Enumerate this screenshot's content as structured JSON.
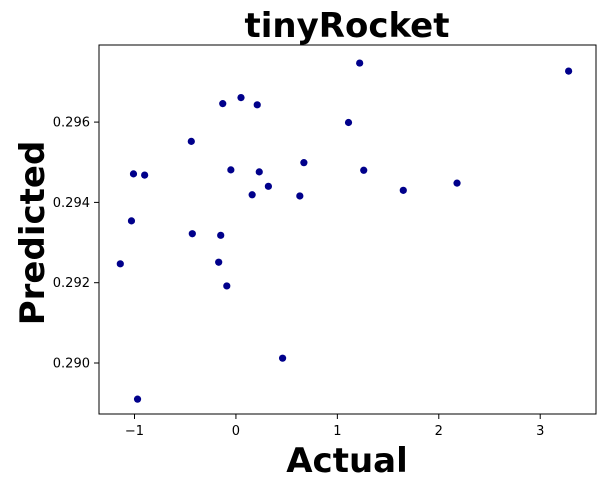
{
  "chart_data": {
    "type": "scatter",
    "title": "tinyRocket",
    "xlabel": "Actual",
    "ylabel": "Predicted",
    "xlim": [
      -1.35,
      3.55
    ],
    "ylim": [
      0.28873,
      0.29792
    ],
    "xticks": [
      -1,
      0,
      1,
      2,
      3
    ],
    "xtick_labels": [
      "−1",
      "0",
      "1",
      "2",
      "3"
    ],
    "yticks": [
      0.29,
      0.292,
      0.294,
      0.296
    ],
    "ytick_labels": [
      "0.290",
      "0.292",
      "0.294",
      "0.296"
    ],
    "grid": false,
    "marker_color": "#00008b",
    "points": [
      {
        "x": -1.14,
        "y": 0.29247
      },
      {
        "x": -1.03,
        "y": 0.29354
      },
      {
        "x": -1.01,
        "y": 0.29471
      },
      {
        "x": -0.97,
        "y": 0.2891
      },
      {
        "x": -0.9,
        "y": 0.29468
      },
      {
        "x": -0.44,
        "y": 0.29552
      },
      {
        "x": -0.43,
        "y": 0.29322
      },
      {
        "x": -0.17,
        "y": 0.29251
      },
      {
        "x": -0.15,
        "y": 0.29318
      },
      {
        "x": -0.13,
        "y": 0.29646
      },
      {
        "x": -0.09,
        "y": 0.29192
      },
      {
        "x": -0.05,
        "y": 0.29481
      },
      {
        "x": 0.05,
        "y": 0.29661
      },
      {
        "x": 0.16,
        "y": 0.29419
      },
      {
        "x": 0.21,
        "y": 0.29643
      },
      {
        "x": 0.23,
        "y": 0.29476
      },
      {
        "x": 0.32,
        "y": 0.2944
      },
      {
        "x": 0.46,
        "y": 0.29012
      },
      {
        "x": 0.63,
        "y": 0.29416
      },
      {
        "x": 0.67,
        "y": 0.29499
      },
      {
        "x": 1.11,
        "y": 0.29599
      },
      {
        "x": 1.22,
        "y": 0.29747
      },
      {
        "x": 1.26,
        "y": 0.2948
      },
      {
        "x": 1.65,
        "y": 0.2943
      },
      {
        "x": 2.18,
        "y": 0.29448
      },
      {
        "x": 3.28,
        "y": 0.29727
      }
    ]
  }
}
